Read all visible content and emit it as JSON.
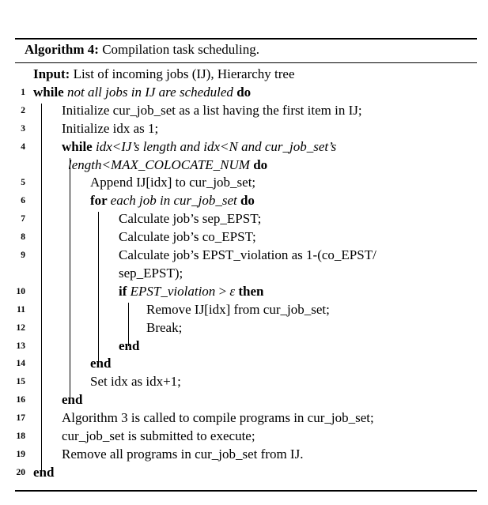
{
  "title": {
    "label": "Algorithm 4:",
    "text": "Compilation task scheduling."
  },
  "lines": [
    {
      "n": "",
      "indent": 0,
      "parts": [
        {
          "t": "Input:",
          "s": "kw"
        },
        {
          "t": " List of incoming jobs (IJ), Hierarchy tree",
          "s": ""
        }
      ]
    },
    {
      "n": "1",
      "indent": 0,
      "parts": [
        {
          "t": "while ",
          "s": "kw"
        },
        {
          "t": "not all jobs in IJ are scheduled",
          "s": "it"
        },
        {
          "t": " do",
          "s": "kw"
        }
      ]
    },
    {
      "n": "2",
      "indent": 1,
      "parts": [
        {
          "t": "Initialize cur_job_set as a list having the first item in IJ;",
          "s": ""
        }
      ]
    },
    {
      "n": "3",
      "indent": 1,
      "parts": [
        {
          "t": "Initialize idx as 1;",
          "s": ""
        }
      ]
    },
    {
      "n": "4",
      "indent": 1,
      "parts": [
        {
          "t": "while ",
          "s": "kw"
        },
        {
          "t": "idx<IJ’s length and idx<N and cur_job_set’s",
          "s": "it"
        }
      ]
    },
    {
      "n": "",
      "indent": 1,
      "cont": true,
      "parts": [
        {
          "t": "length<MAX_COLOCATE_NUM",
          "s": "it"
        },
        {
          "t": " do",
          "s": "kw"
        }
      ]
    },
    {
      "n": "5",
      "indent": 2,
      "parts": [
        {
          "t": "Append IJ[idx] to cur_job_set;",
          "s": ""
        }
      ]
    },
    {
      "n": "6",
      "indent": 2,
      "parts": [
        {
          "t": "for ",
          "s": "kw"
        },
        {
          "t": "each job in cur_job_set",
          "s": "it"
        },
        {
          "t": " do",
          "s": "kw"
        }
      ]
    },
    {
      "n": "7",
      "indent": 3,
      "parts": [
        {
          "t": "Calculate job’s sep_EPST;",
          "s": ""
        }
      ]
    },
    {
      "n": "8",
      "indent": 3,
      "parts": [
        {
          "t": "Calculate job’s co_EPST;",
          "s": ""
        }
      ]
    },
    {
      "n": "9",
      "indent": 3,
      "parts": [
        {
          "t": "Calculate job’s EPST_violation as 1-(co_EPST/",
          "s": ""
        }
      ]
    },
    {
      "n": "",
      "indent": 3,
      "parts": [
        {
          "t": "sep_EPST);",
          "s": ""
        }
      ]
    },
    {
      "n": "10",
      "indent": 3,
      "parts": [
        {
          "t": "if ",
          "s": "kw"
        },
        {
          "t": "EPST_violation",
          "s": "it"
        },
        {
          "t": " > ",
          "s": ""
        },
        {
          "t": "ε",
          "s": "it"
        },
        {
          "t": " then",
          "s": "kw"
        }
      ]
    },
    {
      "n": "11",
      "indent": 4,
      "parts": [
        {
          "t": "Remove IJ[idx] from cur_job_set;",
          "s": ""
        }
      ]
    },
    {
      "n": "12",
      "indent": 4,
      "parts": [
        {
          "t": "Break;",
          "s": ""
        }
      ]
    },
    {
      "n": "13",
      "indent": 3,
      "parts": [
        {
          "t": "end",
          "s": "kw"
        }
      ]
    },
    {
      "n": "14",
      "indent": 2,
      "parts": [
        {
          "t": "end",
          "s": "kw"
        }
      ]
    },
    {
      "n": "15",
      "indent": 2,
      "parts": [
        {
          "t": "Set idx as idx+1;",
          "s": ""
        }
      ]
    },
    {
      "n": "16",
      "indent": 1,
      "parts": [
        {
          "t": "end",
          "s": "kw"
        }
      ]
    },
    {
      "n": "17",
      "indent": 1,
      "parts": [
        {
          "t": "Algorithm 3 is called to compile programs in cur_job_set;",
          "s": ""
        }
      ]
    },
    {
      "n": "18",
      "indent": 1,
      "parts": [
        {
          "t": "cur_job_set is submitted to execute;",
          "s": ""
        }
      ]
    },
    {
      "n": "19",
      "indent": 1,
      "parts": [
        {
          "t": "Remove all programs in cur_job_set from IJ.",
          "s": ""
        }
      ]
    },
    {
      "n": "20",
      "indent": 0,
      "parts": [
        {
          "t": "end",
          "s": "kw"
        }
      ]
    }
  ]
}
